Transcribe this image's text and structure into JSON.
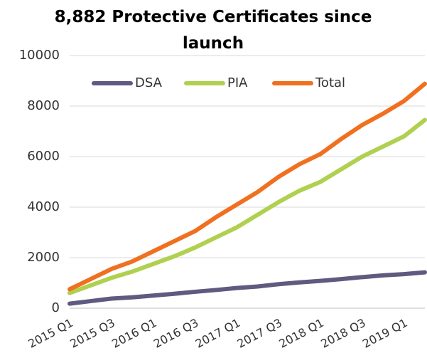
{
  "chart_data": {
    "type": "line",
    "title": "8,882 Protective Certificates since launch",
    "categories": [
      "2015 Q1",
      null,
      "2015 Q3",
      null,
      "2016 Q1",
      null,
      "2016 Q3",
      null,
      "2017 Q1",
      null,
      "2017 Q3",
      null,
      "2018 Q1",
      null,
      "2018 Q3",
      null,
      "2019 Q1",
      null
    ],
    "series": [
      {
        "name": "DSA",
        "color": "#5f5a7f",
        "values": [
          180,
          280,
          380,
          430,
          500,
          570,
          650,
          720,
          800,
          860,
          950,
          1020,
          1080,
          1150,
          1230,
          1300,
          1350,
          1420
        ]
      },
      {
        "name": "PIA",
        "color": "#b0d050",
        "values": [
          600,
          900,
          1200,
          1450,
          1750,
          2050,
          2400,
          2800,
          3200,
          3700,
          4200,
          4650,
          5000,
          5500,
          6000,
          6400,
          6800,
          7450
        ]
      },
      {
        "name": "Total",
        "color": "#f07020",
        "values": [
          750,
          1150,
          1550,
          1850,
          2250,
          2650,
          3050,
          3600,
          4100,
          4600,
          5200,
          5700,
          6100,
          6700,
          7250,
          7700,
          8200,
          8882
        ]
      }
    ],
    "ylim": [
      0,
      10000
    ],
    "yticks": [
      0,
      2000,
      4000,
      6000,
      8000,
      10000
    ],
    "grid": true,
    "legend": "top"
  }
}
